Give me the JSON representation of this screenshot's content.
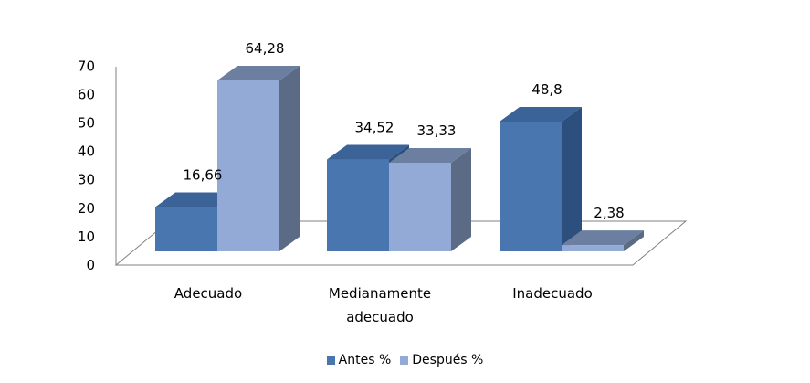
{
  "chart_data": {
    "type": "bar",
    "categories": [
      "Adecuado",
      "Medianamente adecuado",
      "Inadecuado"
    ],
    "category_lines": [
      [
        "Adecuado"
      ],
      [
        "Medianamente",
        "adecuado"
      ],
      [
        "Inadecuado"
      ]
    ],
    "series": [
      {
        "name": "Antes %",
        "values": [
          16.66,
          34.52,
          48.8
        ],
        "labels": [
          "16,66",
          "34,52",
          "48,8"
        ],
        "color": "#4a76b0"
      },
      {
        "name": "Después %",
        "values": [
          64.28,
          33.33,
          2.38
        ],
        "labels": [
          "64,28",
          "33,33",
          "2,38"
        ],
        "color": "#94aad6"
      }
    ],
    "ylim": [
      0,
      70
    ],
    "yticks": [
      "0",
      "10",
      "20",
      "30",
      "40",
      "50",
      "60",
      "70"
    ],
    "grid": false,
    "style": "3d",
    "legend_position": "bottom"
  },
  "colors": {
    "antes_front": "#4a76b0",
    "antes_side": "#2d4f7e",
    "antes_top": "#3b6398",
    "despues_front": "#94aad6",
    "despues_side": "#5b6b85",
    "despues_top": "#6c7fa0",
    "axis": "#808080"
  }
}
